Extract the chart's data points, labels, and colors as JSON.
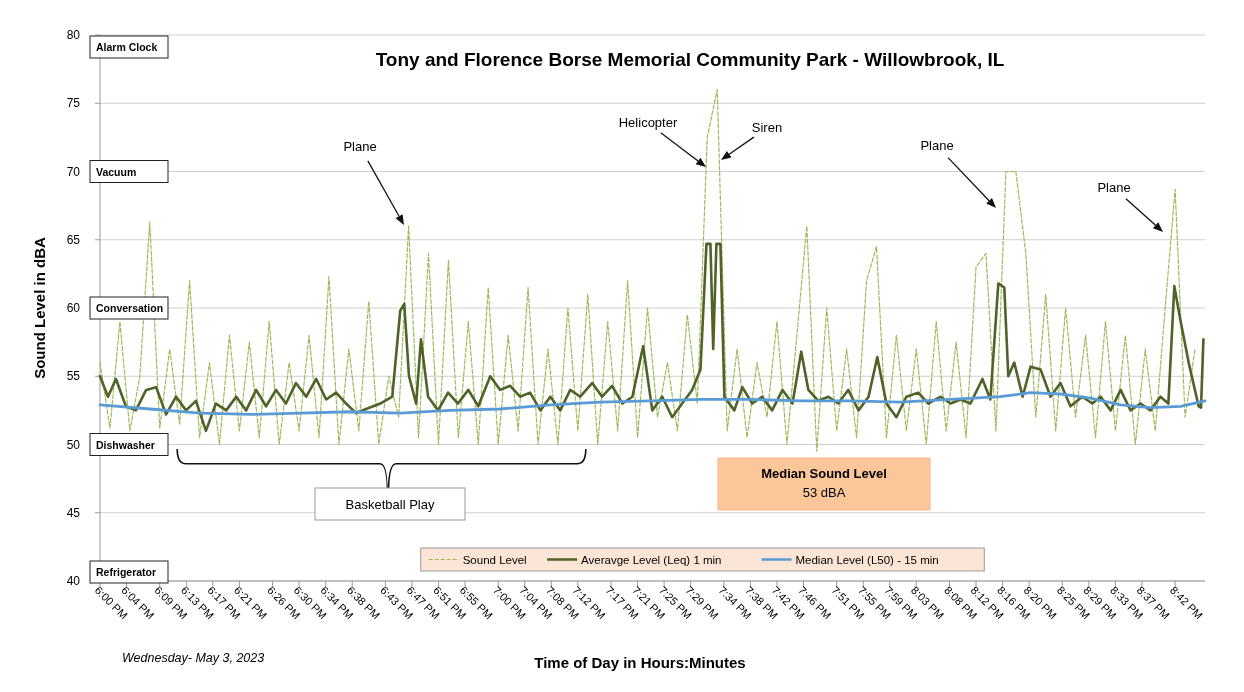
{
  "chart_data": {
    "type": "line",
    "title": "Tony and Florence Borse Memorial Community Park - Willowbrook, IL",
    "xlabel": "Time of Day in Hours:Minutes",
    "ylabel": "Sound Level in dBA",
    "x": [
      18.0,
      18.025,
      18.05,
      18.075,
      18.1,
      18.125,
      18.15,
      18.175,
      18.2,
      18.225,
      18.25,
      18.275,
      18.3,
      18.325,
      18.35,
      18.375,
      18.4,
      18.425,
      18.45,
      18.475,
      18.5,
      18.525,
      18.55,
      18.575,
      18.6,
      18.625,
      18.65,
      18.675,
      18.7,
      18.725,
      18.75,
      18.775,
      18.8,
      18.825,
      18.85,
      18.875,
      18.9,
      18.925,
      18.95,
      18.975,
      19.0,
      19.025,
      19.05,
      19.075,
      19.1,
      19.125,
      19.15,
      19.175,
      19.2,
      19.225,
      19.25,
      19.275,
      19.3,
      19.325,
      19.35,
      19.375,
      19.4,
      19.425,
      19.45,
      19.475,
      19.5,
      19.525,
      19.55,
      19.575,
      19.6,
      19.625,
      19.65,
      19.675,
      19.7,
      19.725,
      19.75,
      19.775,
      19.8,
      19.825,
      19.85,
      19.875,
      19.9,
      19.925,
      19.95,
      19.975,
      20.0,
      20.025,
      20.05,
      20.075,
      20.1,
      20.125,
      20.15,
      20.175,
      20.2,
      20.225,
      20.25,
      20.275,
      20.3,
      20.325,
      20.35,
      20.375,
      20.4,
      20.425,
      20.45,
      20.475,
      20.5,
      20.525,
      20.55,
      20.575,
      20.6,
      20.625,
      20.65,
      20.675,
      20.7,
      20.725,
      20.75
    ],
    "series": [
      {
        "name": "Sound Level",
        "color": "#9bbb59",
        "line_style": "dashed",
        "values": [
          56,
          51.2,
          59,
          51,
          55,
          66.3,
          51.2,
          57,
          51.5,
          62,
          50.5,
          56,
          50,
          58,
          51,
          57.5,
          50.5,
          59,
          50,
          56,
          51,
          58,
          50.5,
          62.3,
          50,
          57,
          51,
          60.5,
          50,
          55,
          52,
          66,
          50.5,
          64,
          50,
          63.5,
          50.5,
          59,
          50,
          61.5,
          50,
          58,
          51,
          61.5,
          50,
          57,
          50,
          60,
          51,
          61,
          50,
          59,
          51,
          62,
          50.5,
          60,
          52,
          56,
          51,
          59.5,
          53,
          72.5,
          76,
          51,
          57,
          50.5,
          56,
          52,
          59,
          50,
          58,
          66,
          49.5,
          60,
          51,
          57,
          50.5,
          62,
          64.5,
          50.5,
          58,
          51,
          57,
          50,
          59,
          51,
          57.5,
          50.5,
          63,
          64,
          51,
          70,
          70,
          64,
          52,
          61,
          51,
          60,
          52,
          58,
          50.5,
          59,
          51,
          58,
          50,
          57,
          51,
          60,
          68.7,
          52,
          57
        ]
      },
      {
        "name": "Averavge Level (Leq) 1 min",
        "color": "#4f6228",
        "x": [
          18.0,
          18.02,
          18.04,
          18.065,
          18.09,
          18.116,
          18.141,
          18.166,
          18.191,
          18.216,
          18.241,
          18.266,
          18.291,
          18.317,
          18.342,
          18.367,
          18.392,
          18.417,
          18.442,
          18.467,
          18.492,
          18.518,
          18.543,
          18.568,
          18.593,
          18.618,
          18.643,
          18.668,
          18.704,
          18.734,
          18.754,
          18.764,
          18.776,
          18.794,
          18.806,
          18.824,
          18.849,
          18.874,
          18.899,
          18.925,
          18.95,
          18.98,
          19.005,
          19.03,
          19.055,
          19.08,
          19.106,
          19.131,
          19.156,
          19.181,
          19.206,
          19.236,
          19.261,
          19.286,
          19.312,
          19.337,
          19.364,
          19.387,
          19.412,
          19.437,
          19.462,
          19.487,
          19.508,
          19.523,
          19.533,
          19.54,
          19.548,
          19.558,
          19.568,
          19.593,
          19.613,
          19.638,
          19.663,
          19.688,
          19.714,
          19.739,
          19.761,
          19.779,
          19.804,
          19.829,
          19.854,
          19.879,
          19.905,
          19.93,
          19.952,
          19.975,
          20.0,
          20.025,
          20.055,
          20.08,
          20.111,
          20.136,
          20.161,
          20.186,
          20.216,
          20.236,
          20.256,
          20.271,
          20.281,
          20.296,
          20.317,
          20.337,
          20.362,
          20.387,
          20.412,
          20.437,
          20.467,
          20.492,
          20.513,
          20.538,
          20.563,
          20.588,
          20.613,
          20.638,
          20.663,
          20.683,
          20.698,
          20.714,
          20.734,
          20.759,
          20.765,
          20.771
        ],
        "values": [
          55,
          53.5,
          54.8,
          52.8,
          52.5,
          54,
          54.2,
          52.2,
          53.5,
          52.5,
          53.2,
          51,
          53,
          52.5,
          53.5,
          52.5,
          54,
          52.8,
          54,
          53,
          54.5,
          53.5,
          54.8,
          53.3,
          53.8,
          53,
          52.3,
          52.6,
          53,
          53.5,
          59.8,
          60.3,
          55,
          53,
          57.7,
          53.5,
          52.5,
          53.8,
          53,
          54,
          52.8,
          55,
          54,
          54.3,
          53.5,
          53.8,
          52.5,
          53.5,
          52.5,
          54,
          53.5,
          54.5,
          53.5,
          54.3,
          53,
          53.5,
          57.2,
          52.5,
          53.5,
          52,
          53,
          54,
          55.5,
          64.7,
          64.7,
          57,
          64.7,
          64.7,
          53.5,
          52.5,
          54.2,
          53,
          53.5,
          52.5,
          54,
          53,
          56.8,
          54,
          53.2,
          53.5,
          53,
          54,
          52.5,
          53.5,
          56.4,
          53,
          52,
          53.5,
          53.8,
          53,
          53.5,
          53,
          53.3,
          53,
          54.8,
          53.3,
          61.8,
          61.5,
          55,
          56,
          53.5,
          55.7,
          55.5,
          53.5,
          54.5,
          52.8,
          53.5,
          53,
          53.5,
          52.5,
          54,
          52.5,
          53,
          52.5,
          53.5,
          53,
          61.6,
          59,
          56,
          52.8,
          52.7,
          57.7
        ]
      },
      {
        "name": "Median Level (L50) - 15 min",
        "color": "#5b9bd5",
        "x": [
          18.0,
          18.126,
          18.251,
          18.377,
          18.503,
          18.628,
          18.754,
          18.879,
          19.005,
          19.131,
          19.256,
          19.382,
          19.508,
          19.633,
          19.759,
          19.884,
          20.01,
          20.136,
          20.261,
          20.337,
          20.412,
          20.487,
          20.563,
          20.638,
          20.714,
          20.775
        ],
        "values": [
          52.9,
          52.6,
          52.3,
          52.2,
          52.3,
          52.4,
          52.3,
          52.5,
          52.6,
          52.9,
          53.1,
          53.2,
          53.3,
          53.3,
          53.2,
          53.2,
          53.1,
          53.3,
          53.5,
          53.8,
          53.7,
          53.4,
          52.9,
          52.7,
          52.8,
          53.2
        ]
      }
    ],
    "xlim": [
      18.0,
      20.775
    ],
    "xticks": [
      {
        "value": 18.0,
        "label": "6:00 PM"
      },
      {
        "value": 18.0667,
        "label": "6:04 PM"
      },
      {
        "value": 18.15,
        "label": "6:09 PM"
      },
      {
        "value": 18.2167,
        "label": "6:13 PM"
      },
      {
        "value": 18.2833,
        "label": "6:17 PM"
      },
      {
        "value": 18.35,
        "label": "6:21 PM"
      },
      {
        "value": 18.4333,
        "label": "6:26 PM"
      },
      {
        "value": 18.5,
        "label": "6:30 PM"
      },
      {
        "value": 18.5667,
        "label": "6:34 PM"
      },
      {
        "value": 18.6333,
        "label": "6:38 PM"
      },
      {
        "value": 18.7167,
        "label": "6:43 PM"
      },
      {
        "value": 18.7833,
        "label": "6:47 PM"
      },
      {
        "value": 18.85,
        "label": "6:51 PM"
      },
      {
        "value": 18.9167,
        "label": "6:55 PM"
      },
      {
        "value": 19.0,
        "label": "7:00 PM"
      },
      {
        "value": 19.0667,
        "label": "7:04 PM"
      },
      {
        "value": 19.1333,
        "label": "7:08 PM"
      },
      {
        "value": 19.2,
        "label": "7:12 PM"
      },
      {
        "value": 19.2833,
        "label": "7:17 PM"
      },
      {
        "value": 19.35,
        "label": "7:21 PM"
      },
      {
        "value": 19.4167,
        "label": "7:25 PM"
      },
      {
        "value": 19.4833,
        "label": "7:29 PM"
      },
      {
        "value": 19.5667,
        "label": "7:34 PM"
      },
      {
        "value": 19.6333,
        "label": "7:38 PM"
      },
      {
        "value": 19.7,
        "label": "7:42 PM"
      },
      {
        "value": 19.7667,
        "label": "7:46 PM"
      },
      {
        "value": 19.85,
        "label": "7:51 PM"
      },
      {
        "value": 19.9167,
        "label": "7:55 PM"
      },
      {
        "value": 19.9833,
        "label": "7:59 PM"
      },
      {
        "value": 20.05,
        "label": "8:03 PM"
      },
      {
        "value": 20.1333,
        "label": "8:08 PM"
      },
      {
        "value": 20.2,
        "label": "8:12 PM"
      },
      {
        "value": 20.2667,
        "label": "8:16 PM"
      },
      {
        "value": 20.3333,
        "label": "8:20 PM"
      },
      {
        "value": 20.4167,
        "label": "8:25 PM"
      },
      {
        "value": 20.4833,
        "label": "8:29 PM"
      },
      {
        "value": 20.55,
        "label": "8:33 PM"
      },
      {
        "value": 20.6167,
        "label": "8:37 PM"
      },
      {
        "value": 20.7,
        "label": "8:42 PM"
      }
    ],
    "ylim": [
      40,
      80
    ],
    "yticks": [
      40,
      45,
      50,
      55,
      60,
      65,
      70,
      75,
      80
    ],
    "grid": "y",
    "legend": "bottom",
    "annotations": [
      "Alarm Clock",
      "Vacuum",
      "Conversation",
      "Dishwasher",
      "Refrigerator",
      "Plane",
      "Helicopter",
      "Siren",
      "Plane",
      "Plane",
      "Basketball Play",
      "Median Sound Level",
      "53 dBA",
      "Wednesday- May 3, 2023"
    ]
  }
}
